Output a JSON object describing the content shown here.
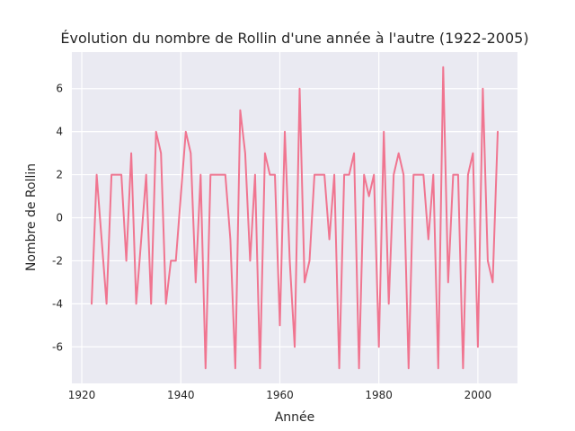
{
  "chart_data": {
    "type": "line",
    "title": "Évolution du nombre de Rollin d'une année à l'autre (1922-2005)",
    "xlabel": "Année",
    "ylabel": "Nombre de Rollin",
    "xlim": [
      1918,
      2008
    ],
    "ylim": [
      -7.7,
      7.7
    ],
    "xticks": [
      1920,
      1940,
      1960,
      1980,
      2000
    ],
    "yticks": [
      -6,
      -4,
      -2,
      0,
      2,
      4,
      6
    ],
    "grid": true,
    "legend": "none",
    "series": [
      {
        "color": "#f07590",
        "x": [
          1922,
          1923,
          1924,
          1925,
          1926,
          1927,
          1928,
          1929,
          1930,
          1931,
          1932,
          1933,
          1934,
          1935,
          1936,
          1937,
          1938,
          1939,
          1940,
          1941,
          1942,
          1943,
          1944,
          1945,
          1946,
          1947,
          1948,
          1949,
          1950,
          1951,
          1952,
          1953,
          1954,
          1955,
          1956,
          1957,
          1958,
          1959,
          1960,
          1961,
          1962,
          1963,
          1964,
          1965,
          1966,
          1967,
          1968,
          1969,
          1970,
          1971,
          1972,
          1973,
          1974,
          1975,
          1976,
          1977,
          1978,
          1979,
          1980,
          1981,
          1982,
          1983,
          1984,
          1985,
          1986,
          1987,
          1988,
          1989,
          1990,
          1991,
          1992,
          1993,
          1994,
          1995,
          1996,
          1997,
          1998,
          1999,
          2000,
          2001,
          2002,
          2003,
          2004
        ],
        "y": [
          -4,
          2,
          -1,
          -4,
          2,
          2,
          2,
          -2,
          3,
          -4,
          -1,
          2,
          -4,
          4,
          3,
          -4,
          -2,
          -2,
          1,
          4,
          3,
          -3,
          2,
          -7,
          2,
          2,
          2,
          2,
          -1,
          -7,
          5,
          3,
          -2,
          2,
          -7,
          3,
          2,
          2,
          -5,
          4,
          -2,
          -6,
          6,
          -3,
          -2,
          2,
          2,
          2,
          -1,
          2,
          -7,
          2,
          2,
          3,
          -7,
          2,
          1,
          2,
          -6,
          4,
          -4,
          2,
          3,
          2,
          -7,
          2,
          2,
          2,
          -1,
          2,
          -7,
          7,
          -3,
          2,
          2,
          -7,
          2,
          3,
          -6,
          6,
          -2,
          -3,
          4
        ]
      }
    ]
  }
}
